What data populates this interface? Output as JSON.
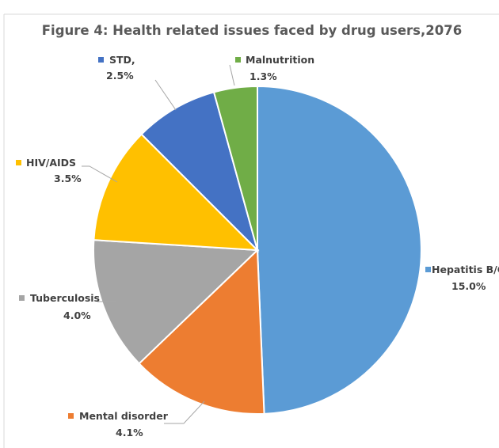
{
  "chart_data": {
    "type": "pie",
    "title": "Figure 4: Health related issues faced by drug users,2076",
    "start_angle_deg": 0,
    "direction": "clockwise",
    "slices": [
      {
        "name": "Hepatitis B/C",
        "value": 15.0,
        "display": "15.0%",
        "color": "#5b9bd5"
      },
      {
        "name": "Mental disorder",
        "value": 4.1,
        "display": "4.1%",
        "color": "#ed7d31"
      },
      {
        "name": "Tuberculosis",
        "value": 4.0,
        "display": "4.0%",
        "color": "#a5a5a5"
      },
      {
        "name": "HIV/AIDS",
        "value": 3.5,
        "display": "3.5%",
        "color": "#ffc000"
      },
      {
        "name": "STD,",
        "value": 2.5,
        "display": "2.5%",
        "color": "#4472c4"
      },
      {
        "name": "Malnutrition",
        "value": 1.3,
        "display": "1.3%",
        "color": "#70ad47"
      }
    ]
  }
}
